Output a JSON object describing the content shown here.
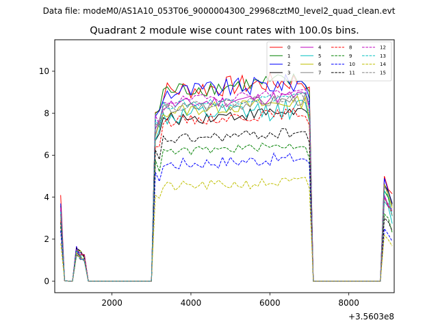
{
  "chart_data": {
    "type": "line",
    "suptitle": "Data file: modeM0/AS1A10_053T06_9000004300_29968cztM0_level2_quad_clean.evt",
    "title": "Quadrant 2 module wise count rates with 100.0s bins.",
    "xlabel": "",
    "ylabel": "",
    "offset_label": "+3.5603e8",
    "xlim": [
      550,
      9150
    ],
    "ylim": [
      -0.55,
      11.5
    ],
    "xticks": [
      2000,
      4000,
      6000,
      8000
    ],
    "yticks": [
      0,
      2,
      4,
      6,
      8,
      10
    ],
    "grid": false,
    "legend_location": "top-right",
    "legend_ncol": 4,
    "x_segments": [
      [
        700,
        1500,
        100
      ],
      [
        3000,
        7200,
        100
      ],
      [
        8800,
        9100,
        100
      ]
    ],
    "gap_value": 0,
    "series": [
      {
        "name": "0",
        "color": "#ff0000",
        "dash": "solid",
        "level": 9.3,
        "variability": 0.5,
        "start": 4.1,
        "end": 5.0
      },
      {
        "name": "1",
        "color": "#008000",
        "dash": "solid",
        "level": 9.3,
        "variability": 0.4,
        "start": 3.6,
        "end": 4.3
      },
      {
        "name": "2",
        "color": "#0000ff",
        "dash": "solid",
        "level": 9.2,
        "variability": 0.45,
        "start": 3.7,
        "end": 4.9
      },
      {
        "name": "3",
        "color": "#000000",
        "dash": "solid",
        "level": 7.9,
        "variability": 0.3,
        "start": 3.2,
        "end": 4.6
      },
      {
        "name": "4",
        "color": "#bf00bf",
        "dash": "solid",
        "level": 8.6,
        "variability": 0.3,
        "start": 3.5,
        "end": 4.1
      },
      {
        "name": "5",
        "color": "#00bfbf",
        "dash": "solid",
        "level": 8.0,
        "variability": 0.5,
        "start": 3.4,
        "end": 3.8
      },
      {
        "name": "6",
        "color": "#bfbf00",
        "dash": "solid",
        "level": 8.3,
        "variability": 0.3,
        "start": 3.0,
        "end": 4.6
      },
      {
        "name": "7",
        "color": "#808080",
        "dash": "solid",
        "level": 8.4,
        "variability": 0.3,
        "start": 3.1,
        "end": 4.5
      },
      {
        "name": "8",
        "color": "#ff0000",
        "dash": "dashed",
        "level": 7.8,
        "variability": 0.25,
        "start": 2.9,
        "end": 4.0
      },
      {
        "name": "9",
        "color": "#008000",
        "dash": "dashed",
        "level": 6.3,
        "variability": 0.2,
        "start": 2.6,
        "end": 3.2
      },
      {
        "name": "10",
        "color": "#0000ff",
        "dash": "dashed",
        "level": 5.7,
        "variability": 0.3,
        "start": 2.4,
        "end": 2.5
      },
      {
        "name": "11",
        "color": "#000000",
        "dash": "dashed",
        "level": 6.9,
        "variability": 0.25,
        "start": 2.8,
        "end": 3.0
      },
      {
        "name": "12",
        "color": "#bf00bf",
        "dash": "dashed",
        "level": 8.8,
        "variability": 0.2,
        "start": 3.4,
        "end": 4.0
      },
      {
        "name": "13",
        "color": "#00bfbf",
        "dash": "dashed",
        "level": 8.6,
        "variability": 0.2,
        "start": 3.3,
        "end": 4.3
      },
      {
        "name": "14",
        "color": "#bfbf00",
        "dash": "dashed",
        "level": 4.6,
        "variability": 0.25,
        "start": 1.8,
        "end": 2.2
      },
      {
        "name": "15",
        "color": "#808080",
        "dash": "dashed",
        "level": 8.5,
        "variability": 0.2,
        "start": 3.2,
        "end": 3.9
      }
    ]
  }
}
